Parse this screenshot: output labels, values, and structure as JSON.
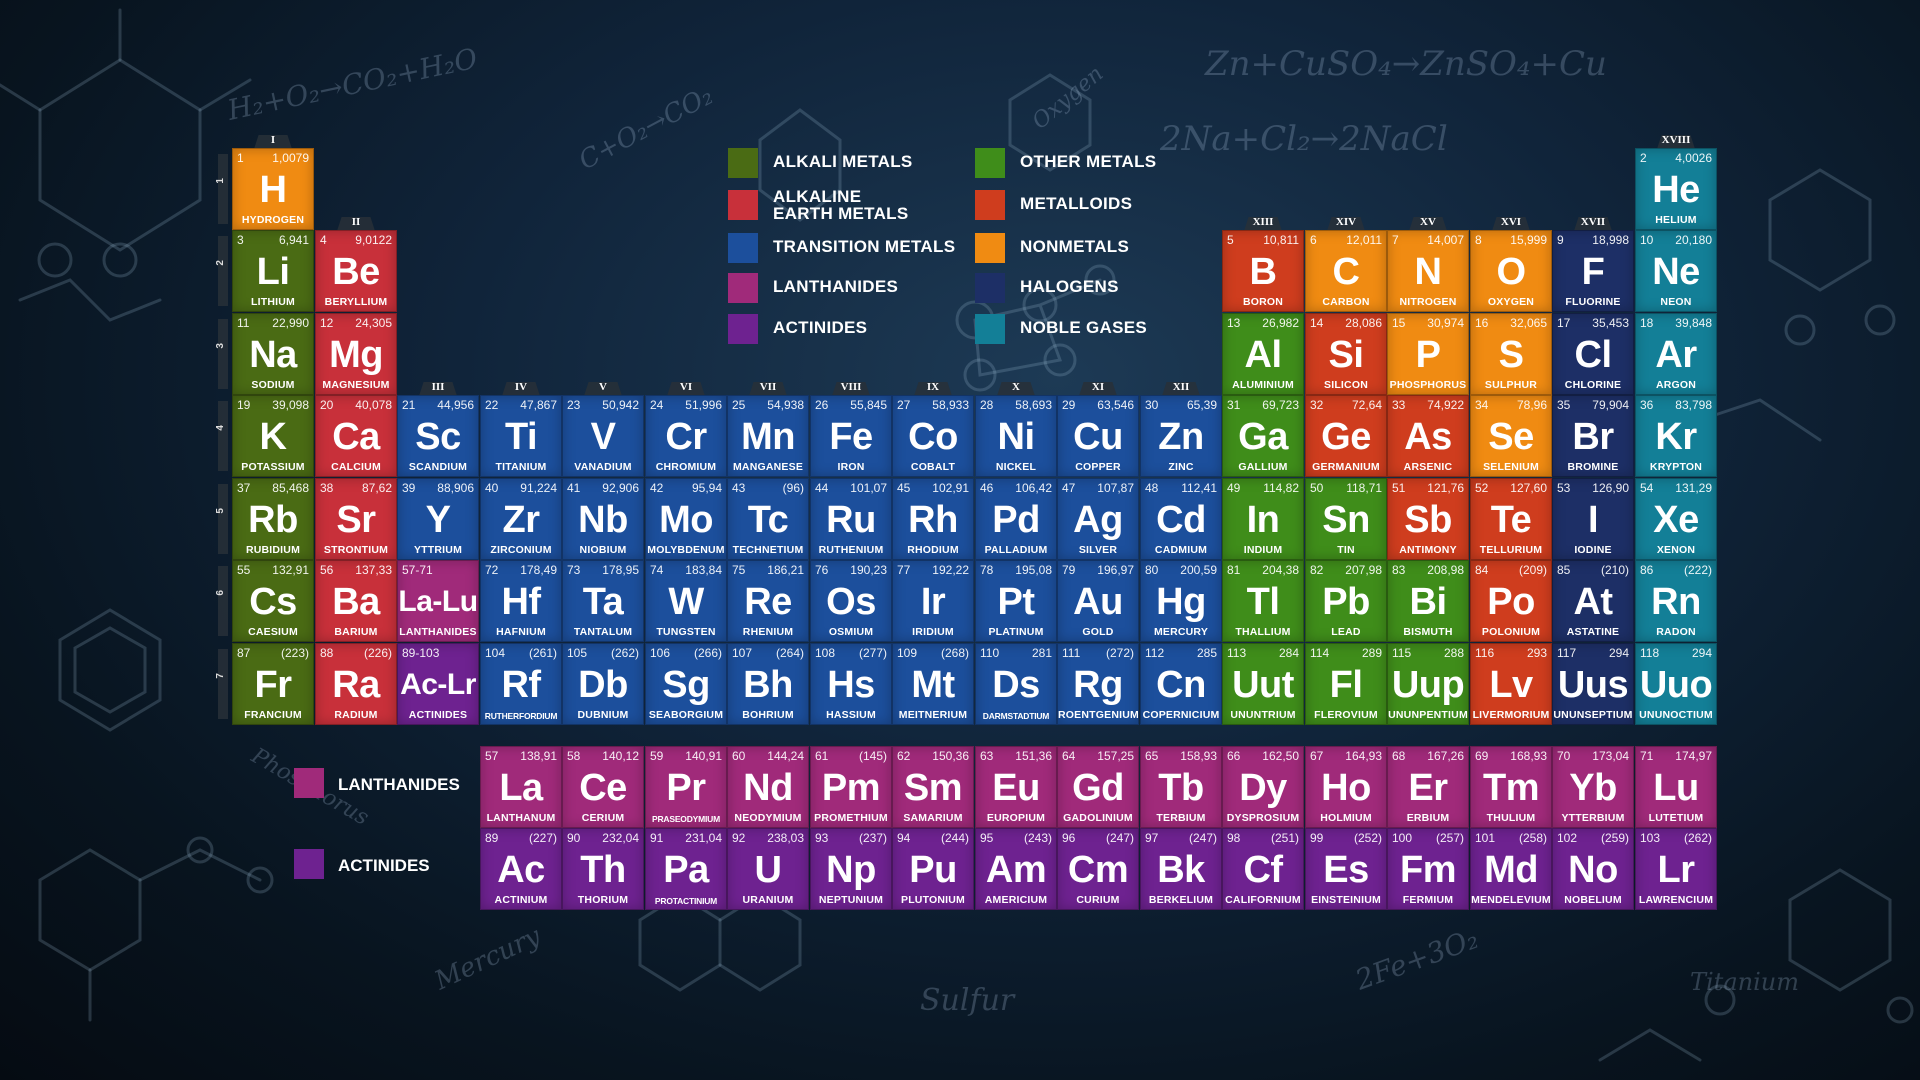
{
  "colors": {
    "alkali": "#4a6b14",
    "alkaline_earth": "#c8303a",
    "transition": "#1c4f9c",
    "lanthanide": "#a02a7a",
    "actinide": "#6e2290",
    "other_metal": "#3f8d1a",
    "metalloid": "#cf3d1e",
    "nonmetal": "#f08b12",
    "halogen": "#1d2f66",
    "noble": "#137f97"
  },
  "groups": [
    "I",
    "II",
    "III",
    "IV",
    "V",
    "VI",
    "VII",
    "VIII",
    "IX",
    "X",
    "XI",
    "XII",
    "XIII",
    "XIV",
    "XV",
    "XVI",
    "XVII",
    "XVIII"
  ],
  "periods": [
    "1",
    "2",
    "3",
    "4",
    "5",
    "6",
    "7"
  ],
  "legend": [
    {
      "label": "ALKALI METALS",
      "color": "#4a6b14"
    },
    {
      "label": "ALKALINE EARTH METALS",
      "color": "#c8303a"
    },
    {
      "label": "TRANSITION METALS",
      "color": "#1c4f9c"
    },
    {
      "label": "LANTHANIDES",
      "color": "#a02a7a"
    },
    {
      "label": "ACTINIDES",
      "color": "#6e2290"
    },
    {
      "label": "OTHER METALS",
      "color": "#3f8d1a"
    },
    {
      "label": "METALLOIDS",
      "color": "#cf3d1e"
    },
    {
      "label": "NONMETALS",
      "color": "#f08b12"
    },
    {
      "label": "HALOGENS",
      "color": "#1d2f66"
    },
    {
      "label": "NOBLE GASES",
      "color": "#137f97"
    }
  ],
  "bottom_legend": [
    {
      "label": "LANTHANIDES",
      "color": "#a02a7a"
    },
    {
      "label": "ACTINIDES",
      "color": "#6e2290"
    }
  ],
  "background_text": [
    "Zn+CuSO₄→ZnSO₄+Cu",
    "2Na+Cl₂→2NaCl",
    "H₂+O₂→CO₂+H₂O",
    "C+O₂→CO₂",
    "Sulfur",
    "Mercury",
    "Oxygen",
    "Titanium",
    "Phosphorus",
    "2Fe+3O₂"
  ],
  "elements": [
    {
      "n": "1",
      "m": "1,0079",
      "s": "H",
      "name": "HYDROGEN",
      "c": "nonmetal",
      "r": 1,
      "g": 1
    },
    {
      "n": "2",
      "m": "4,0026",
      "s": "He",
      "name": "HELIUM",
      "c": "noble",
      "r": 1,
      "g": 18
    },
    {
      "n": "3",
      "m": "6,941",
      "s": "Li",
      "name": "LITHIUM",
      "c": "alkali",
      "r": 2,
      "g": 1
    },
    {
      "n": "4",
      "m": "9,0122",
      "s": "Be",
      "name": "BERYLLIUM",
      "c": "alkaline_earth",
      "r": 2,
      "g": 2
    },
    {
      "n": "5",
      "m": "10,811",
      "s": "B",
      "name": "BORON",
      "c": "metalloid",
      "r": 2,
      "g": 13
    },
    {
      "n": "6",
      "m": "12,011",
      "s": "C",
      "name": "CARBON",
      "c": "nonmetal",
      "r": 2,
      "g": 14
    },
    {
      "n": "7",
      "m": "14,007",
      "s": "N",
      "name": "NITROGEN",
      "c": "nonmetal",
      "r": 2,
      "g": 15
    },
    {
      "n": "8",
      "m": "15,999",
      "s": "O",
      "name": "OXYGEN",
      "c": "nonmetal",
      "r": 2,
      "g": 16
    },
    {
      "n": "9",
      "m": "18,998",
      "s": "F",
      "name": "FLUORINE",
      "c": "halogen",
      "r": 2,
      "g": 17
    },
    {
      "n": "10",
      "m": "20,180",
      "s": "Ne",
      "name": "NEON",
      "c": "noble",
      "r": 2,
      "g": 18
    },
    {
      "n": "11",
      "m": "22,990",
      "s": "Na",
      "name": "SODIUM",
      "c": "alkali",
      "r": 3,
      "g": 1
    },
    {
      "n": "12",
      "m": "24,305",
      "s": "Mg",
      "name": "MAGNESIUM",
      "c": "alkaline_earth",
      "r": 3,
      "g": 2
    },
    {
      "n": "13",
      "m": "26,982",
      "s": "Al",
      "name": "ALUMINIUM",
      "c": "other_metal",
      "r": 3,
      "g": 13
    },
    {
      "n": "14",
      "m": "28,086",
      "s": "Si",
      "name": "SILICON",
      "c": "metalloid",
      "r": 3,
      "g": 14
    },
    {
      "n": "15",
      "m": "30,974",
      "s": "P",
      "name": "PHOSPHORUS",
      "c": "nonmetal",
      "r": 3,
      "g": 15
    },
    {
      "n": "16",
      "m": "32,065",
      "s": "S",
      "name": "SULPHUR",
      "c": "nonmetal",
      "r": 3,
      "g": 16
    },
    {
      "n": "17",
      "m": "35,453",
      "s": "Cl",
      "name": "CHLORINE",
      "c": "halogen",
      "r": 3,
      "g": 17
    },
    {
      "n": "18",
      "m": "39,848",
      "s": "Ar",
      "name": "ARGON",
      "c": "noble",
      "r": 3,
      "g": 18
    },
    {
      "n": "19",
      "m": "39,098",
      "s": "K",
      "name": "POTASSIUM",
      "c": "alkali",
      "r": 4,
      "g": 1
    },
    {
      "n": "20",
      "m": "40,078",
      "s": "Ca",
      "name": "CALCIUM",
      "c": "alkaline_earth",
      "r": 4,
      "g": 2
    },
    {
      "n": "21",
      "m": "44,956",
      "s": "Sc",
      "name": "SCANDIUM",
      "c": "transition",
      "r": 4,
      "g": 3
    },
    {
      "n": "22",
      "m": "47,867",
      "s": "Ti",
      "name": "TITANIUM",
      "c": "transition",
      "r": 4,
      "g": 4
    },
    {
      "n": "23",
      "m": "50,942",
      "s": "V",
      "name": "VANADIUM",
      "c": "transition",
      "r": 4,
      "g": 5
    },
    {
      "n": "24",
      "m": "51,996",
      "s": "Cr",
      "name": "CHROMIUM",
      "c": "transition",
      "r": 4,
      "g": 6
    },
    {
      "n": "25",
      "m": "54,938",
      "s": "Mn",
      "name": "MANGANESE",
      "c": "transition",
      "r": 4,
      "g": 7
    },
    {
      "n": "26",
      "m": "55,845",
      "s": "Fe",
      "name": "IRON",
      "c": "transition",
      "r": 4,
      "g": 8
    },
    {
      "n": "27",
      "m": "58,933",
      "s": "Co",
      "name": "COBALT",
      "c": "transition",
      "r": 4,
      "g": 9
    },
    {
      "n": "28",
      "m": "58,693",
      "s": "Ni",
      "name": "NICKEL",
      "c": "transition",
      "r": 4,
      "g": 10
    },
    {
      "n": "29",
      "m": "63,546",
      "s": "Cu",
      "name": "COPPER",
      "c": "transition",
      "r": 4,
      "g": 11
    },
    {
      "n": "30",
      "m": "65,39",
      "s": "Zn",
      "name": "ZINC",
      "c": "transition",
      "r": 4,
      "g": 12
    },
    {
      "n": "31",
      "m": "69,723",
      "s": "Ga",
      "name": "GALLIUM",
      "c": "other_metal",
      "r": 4,
      "g": 13
    },
    {
      "n": "32",
      "m": "72,64",
      "s": "Ge",
      "name": "GERMANIUM",
      "c": "metalloid",
      "r": 4,
      "g": 14
    },
    {
      "n": "33",
      "m": "74,922",
      "s": "As",
      "name": "ARSENIC",
      "c": "metalloid",
      "r": 4,
      "g": 15
    },
    {
      "n": "34",
      "m": "78,96",
      "s": "Se",
      "name": "SELENIUM",
      "c": "nonmetal",
      "r": 4,
      "g": 16
    },
    {
      "n": "35",
      "m": "79,904",
      "s": "Br",
      "name": "BROMINE",
      "c": "halogen",
      "r": 4,
      "g": 17
    },
    {
      "n": "36",
      "m": "83,798",
      "s": "Kr",
      "name": "KRYPTON",
      "c": "noble",
      "r": 4,
      "g": 18
    },
    {
      "n": "37",
      "m": "85,468",
      "s": "Rb",
      "name": "RUBIDIUM",
      "c": "alkali",
      "r": 5,
      "g": 1
    },
    {
      "n": "38",
      "m": "87,62",
      "s": "Sr",
      "name": "STRONTIUM",
      "c": "alkaline_earth",
      "r": 5,
      "g": 2
    },
    {
      "n": "39",
      "m": "88,906",
      "s": "Y",
      "name": "YTTRIUM",
      "c": "transition",
      "r": 5,
      "g": 3
    },
    {
      "n": "40",
      "m": "91,224",
      "s": "Zr",
      "name": "ZIRCONIUM",
      "c": "transition",
      "r": 5,
      "g": 4
    },
    {
      "n": "41",
      "m": "92,906",
      "s": "Nb",
      "name": "NIOBIUM",
      "c": "transition",
      "r": 5,
      "g": 5
    },
    {
      "n": "42",
      "m": "95,94",
      "s": "Mo",
      "name": "MOLYBDENUM",
      "c": "transition",
      "r": 5,
      "g": 6
    },
    {
      "n": "43",
      "m": "(96)",
      "s": "Tc",
      "name": "TECHNETIUM",
      "c": "transition",
      "r": 5,
      "g": 7
    },
    {
      "n": "44",
      "m": "101,07",
      "s": "Ru",
      "name": "RUTHENIUM",
      "c": "transition",
      "r": 5,
      "g": 8
    },
    {
      "n": "45",
      "m": "102,91",
      "s": "Rh",
      "name": "RHODIUM",
      "c": "transition",
      "r": 5,
      "g": 9
    },
    {
      "n": "46",
      "m": "106,42",
      "s": "Pd",
      "name": "PALLADIUM",
      "c": "transition",
      "r": 5,
      "g": 10
    },
    {
      "n": "47",
      "m": "107,87",
      "s": "Ag",
      "name": "SILVER",
      "c": "transition",
      "r": 5,
      "g": 11
    },
    {
      "n": "48",
      "m": "112,41",
      "s": "Cd",
      "name": "CADMIUM",
      "c": "transition",
      "r": 5,
      "g": 12
    },
    {
      "n": "49",
      "m": "114,82",
      "s": "In",
      "name": "INDIUM",
      "c": "other_metal",
      "r": 5,
      "g": 13
    },
    {
      "n": "50",
      "m": "118,71",
      "s": "Sn",
      "name": "TIN",
      "c": "other_metal",
      "r": 5,
      "g": 14
    },
    {
      "n": "51",
      "m": "121,76",
      "s": "Sb",
      "name": "ANTIMONY",
      "c": "metalloid",
      "r": 5,
      "g": 15
    },
    {
      "n": "52",
      "m": "127,60",
      "s": "Te",
      "name": "TELLURIUM",
      "c": "metalloid",
      "r": 5,
      "g": 16
    },
    {
      "n": "53",
      "m": "126,90",
      "s": "I",
      "name": "IODINE",
      "c": "halogen",
      "r": 5,
      "g": 17
    },
    {
      "n": "54",
      "m": "131,29",
      "s": "Xe",
      "name": "XENON",
      "c": "noble",
      "r": 5,
      "g": 18
    },
    {
      "n": "55",
      "m": "132,91",
      "s": "Cs",
      "name": "CAESIUM",
      "c": "alkali",
      "r": 6,
      "g": 1
    },
    {
      "n": "56",
      "m": "137,33",
      "s": "Ba",
      "name": "BARIUM",
      "c": "alkaline_earth",
      "r": 6,
      "g": 2
    },
    {
      "n": "57-71",
      "m": "",
      "s": "La-Lu",
      "name": "LANTHANIDES",
      "c": "lanthanide",
      "r": 6,
      "g": 3
    },
    {
      "n": "72",
      "m": "178,49",
      "s": "Hf",
      "name": "HAFNIUM",
      "c": "transition",
      "r": 6,
      "g": 4
    },
    {
      "n": "73",
      "m": "178,95",
      "s": "Ta",
      "name": "TANTALUM",
      "c": "transition",
      "r": 6,
      "g": 5
    },
    {
      "n": "74",
      "m": "183,84",
      "s": "W",
      "name": "TUNGSTEN",
      "c": "transition",
      "r": 6,
      "g": 6
    },
    {
      "n": "75",
      "m": "186,21",
      "s": "Re",
      "name": "RHENIUM",
      "c": "transition",
      "r": 6,
      "g": 7
    },
    {
      "n": "76",
      "m": "190,23",
      "s": "Os",
      "name": "OSMIUM",
      "c": "transition",
      "r": 6,
      "g": 8
    },
    {
      "n": "77",
      "m": "192,22",
      "s": "Ir",
      "name": "IRIDIUM",
      "c": "transition",
      "r": 6,
      "g": 9
    },
    {
      "n": "78",
      "m": "195,08",
      "s": "Pt",
      "name": "PLATINUM",
      "c": "transition",
      "r": 6,
      "g": 10
    },
    {
      "n": "79",
      "m": "196,97",
      "s": "Au",
      "name": "GOLD",
      "c": "transition",
      "r": 6,
      "g": 11
    },
    {
      "n": "80",
      "m": "200,59",
      "s": "Hg",
      "name": "MERCURY",
      "c": "transition",
      "r": 6,
      "g": 12
    },
    {
      "n": "81",
      "m": "204,38",
      "s": "Tl",
      "name": "THALLIUM",
      "c": "other_metal",
      "r": 6,
      "g": 13
    },
    {
      "n": "82",
      "m": "207,98",
      "s": "Pb",
      "name": "LEAD",
      "c": "other_metal",
      "r": 6,
      "g": 14
    },
    {
      "n": "83",
      "m": "208,98",
      "s": "Bi",
      "name": "BISMUTH",
      "c": "other_metal",
      "r": 6,
      "g": 15
    },
    {
      "n": "84",
      "m": "(209)",
      "s": "Po",
      "name": "POLONIUM",
      "c": "metalloid",
      "r": 6,
      "g": 16
    },
    {
      "n": "85",
      "m": "(210)",
      "s": "At",
      "name": "ASTATINE",
      "c": "halogen",
      "r": 6,
      "g": 17
    },
    {
      "n": "86",
      "m": "(222)",
      "s": "Rn",
      "name": "RADON",
      "c": "noble",
      "r": 6,
      "g": 18
    },
    {
      "n": "87",
      "m": "(223)",
      "s": "Fr",
      "name": "FRANCIUM",
      "c": "alkali",
      "r": 7,
      "g": 1
    },
    {
      "n": "88",
      "m": "(226)",
      "s": "Ra",
      "name": "RADIUM",
      "c": "alkaline_earth",
      "r": 7,
      "g": 2
    },
    {
      "n": "89-103",
      "m": "",
      "s": "Ac-Lr",
      "name": "ACTINIDES",
      "c": "actinide",
      "r": 7,
      "g": 3
    },
    {
      "n": "104",
      "m": "(261)",
      "s": "Rf",
      "name": "RUTHERFORDIUM",
      "c": "transition",
      "r": 7,
      "g": 4
    },
    {
      "n": "105",
      "m": "(262)",
      "s": "Db",
      "name": "DUBNIUM",
      "c": "transition",
      "r": 7,
      "g": 5
    },
    {
      "n": "106",
      "m": "(266)",
      "s": "Sg",
      "name": "SEABORGIUM",
      "c": "transition",
      "r": 7,
      "g": 6
    },
    {
      "n": "107",
      "m": "(264)",
      "s": "Bh",
      "name": "BOHRIUM",
      "c": "transition",
      "r": 7,
      "g": 7
    },
    {
      "n": "108",
      "m": "(277)",
      "s": "Hs",
      "name": "HASSIUM",
      "c": "transition",
      "r": 7,
      "g": 8
    },
    {
      "n": "109",
      "m": "(268)",
      "s": "Mt",
      "name": "MEITNERIUM",
      "c": "transition",
      "r": 7,
      "g": 9
    },
    {
      "n": "110",
      "m": "281",
      "s": "Ds",
      "name": "DARMSTADTIUM",
      "c": "transition",
      "r": 7,
      "g": 10
    },
    {
      "n": "111",
      "m": "(272)",
      "s": "Rg",
      "name": "ROENTGENIUM",
      "c": "transition",
      "r": 7,
      "g": 11
    },
    {
      "n": "112",
      "m": "285",
      "s": "Cn",
      "name": "COPERNICIUM",
      "c": "transition",
      "r": 7,
      "g": 12
    },
    {
      "n": "113",
      "m": "284",
      "s": "Uut",
      "name": "UNUNTRIUM",
      "c": "other_metal",
      "r": 7,
      "g": 13
    },
    {
      "n": "114",
      "m": "289",
      "s": "Fl",
      "name": "FLEROVIUM",
      "c": "other_metal",
      "r": 7,
      "g": 14
    },
    {
      "n": "115",
      "m": "288",
      "s": "Uup",
      "name": "UNUNPENTIUM",
      "c": "other_metal",
      "r": 7,
      "g": 15
    },
    {
      "n": "116",
      "m": "293",
      "s": "Lv",
      "name": "LIVERMORIUM",
      "c": "metalloid",
      "r": 7,
      "g": 16
    },
    {
      "n": "117",
      "m": "294",
      "s": "Uus",
      "name": "UNUNSEPTIUM",
      "c": "halogen",
      "r": 7,
      "g": 17
    },
    {
      "n": "118",
      "m": "294",
      "s": "Uuo",
      "name": "UNUNOCTIUM",
      "c": "noble",
      "r": 7,
      "g": 18
    },
    {
      "n": "57",
      "m": "138,91",
      "s": "La",
      "name": "LANTHANUM",
      "c": "lanthanide",
      "r": 9,
      "g": 4
    },
    {
      "n": "58",
      "m": "140,12",
      "s": "Ce",
      "name": "CERIUM",
      "c": "lanthanide",
      "r": 9,
      "g": 5
    },
    {
      "n": "59",
      "m": "140,91",
      "s": "Pr",
      "name": "PRASEODYMIUM",
      "c": "lanthanide",
      "r": 9,
      "g": 6
    },
    {
      "n": "60",
      "m": "144,24",
      "s": "Nd",
      "name": "NEODYMIUM",
      "c": "lanthanide",
      "r": 9,
      "g": 7
    },
    {
      "n": "61",
      "m": "(145)",
      "s": "Pm",
      "name": "PROMETHIUM",
      "c": "lanthanide",
      "r": 9,
      "g": 8
    },
    {
      "n": "62",
      "m": "150,36",
      "s": "Sm",
      "name": "SAMARIUM",
      "c": "lanthanide",
      "r": 9,
      "g": 9
    },
    {
      "n": "63",
      "m": "151,36",
      "s": "Eu",
      "name": "EUROPIUM",
      "c": "lanthanide",
      "r": 9,
      "g": 10
    },
    {
      "n": "64",
      "m": "157,25",
      "s": "Gd",
      "name": "GADOLINIUM",
      "c": "lanthanide",
      "r": 9,
      "g": 11
    },
    {
      "n": "65",
      "m": "158,93",
      "s": "Tb",
      "name": "TERBIUM",
      "c": "lanthanide",
      "r": 9,
      "g": 12
    },
    {
      "n": "66",
      "m": "162,50",
      "s": "Dy",
      "name": "DYSPROSIUM",
      "c": "lanthanide",
      "r": 9,
      "g": 13
    },
    {
      "n": "67",
      "m": "164,93",
      "s": "Ho",
      "name": "HOLMIUM",
      "c": "lanthanide",
      "r": 9,
      "g": 14
    },
    {
      "n": "68",
      "m": "167,26",
      "s": "Er",
      "name": "ERBIUM",
      "c": "lanthanide",
      "r": 9,
      "g": 15
    },
    {
      "n": "69",
      "m": "168,93",
      "s": "Tm",
      "name": "THULIUM",
      "c": "lanthanide",
      "r": 9,
      "g": 16
    },
    {
      "n": "70",
      "m": "173,04",
      "s": "Yb",
      "name": "YTTERBIUM",
      "c": "lanthanide",
      "r": 9,
      "g": 17
    },
    {
      "n": "71",
      "m": "174,97",
      "s": "Lu",
      "name": "LUTETIUM",
      "c": "lanthanide",
      "r": 9,
      "g": 18
    },
    {
      "n": "89",
      "m": "(227)",
      "s": "Ac",
      "name": "ACTINIUM",
      "c": "actinide",
      "r": 10,
      "g": 4
    },
    {
      "n": "90",
      "m": "232,04",
      "s": "Th",
      "name": "THORIUM",
      "c": "actinide",
      "r": 10,
      "g": 5
    },
    {
      "n": "91",
      "m": "231,04",
      "s": "Pa",
      "name": "PROTACTINIUM",
      "c": "actinide",
      "r": 10,
      "g": 6
    },
    {
      "n": "92",
      "m": "238,03",
      "s": "U",
      "name": "URANIUM",
      "c": "actinide",
      "r": 10,
      "g": 7
    },
    {
      "n": "93",
      "m": "(237)",
      "s": "Np",
      "name": "NEPTUNIUM",
      "c": "actinide",
      "r": 10,
      "g": 8
    },
    {
      "n": "94",
      "m": "(244)",
      "s": "Pu",
      "name": "PLUTONIUM",
      "c": "actinide",
      "r": 10,
      "g": 9
    },
    {
      "n": "95",
      "m": "(243)",
      "s": "Am",
      "name": "AMERICIUM",
      "c": "actinide",
      "r": 10,
      "g": 10
    },
    {
      "n": "96",
      "m": "(247)",
      "s": "Cm",
      "name": "CURIUM",
      "c": "actinide",
      "r": 10,
      "g": 11
    },
    {
      "n": "97",
      "m": "(247)",
      "s": "Bk",
      "name": "BERKELIUM",
      "c": "actinide",
      "r": 10,
      "g": 12
    },
    {
      "n": "98",
      "m": "(251)",
      "s": "Cf",
      "name": "CALIFORNIUM",
      "c": "actinide",
      "r": 10,
      "g": 13
    },
    {
      "n": "99",
      "m": "(252)",
      "s": "Es",
      "name": "EINSTEINIUM",
      "c": "actinide",
      "r": 10,
      "g": 14
    },
    {
      "n": "100",
      "m": "(257)",
      "s": "Fm",
      "name": "FERMIUM",
      "c": "actinide",
      "r": 10,
      "g": 15
    },
    {
      "n": "101",
      "m": "(258)",
      "s": "Md",
      "name": "MENDELEVIUM",
      "c": "actinide",
      "r": 10,
      "g": 16
    },
    {
      "n": "102",
      "m": "(259)",
      "s": "No",
      "name": "NOBELIUM",
      "c": "actinide",
      "r": 10,
      "g": 17
    },
    {
      "n": "103",
      "m": "(262)",
      "s": "Lr",
      "name": "LAWRENCIUM",
      "c": "actinide",
      "r": 10,
      "g": 18
    }
  ]
}
